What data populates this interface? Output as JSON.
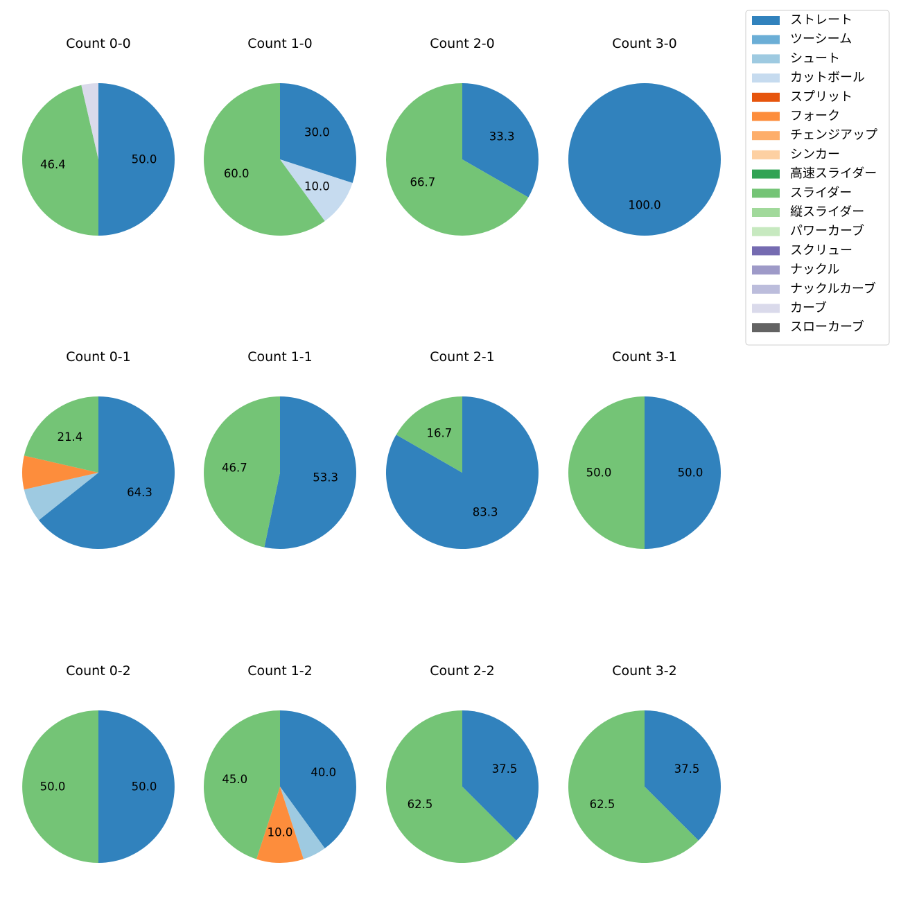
{
  "chart_data": {
    "type": "pie",
    "legend": {
      "position": "top-right",
      "entries": [
        {
          "name": "ストレート",
          "color": "#3182bd"
        },
        {
          "name": "ツーシーム",
          "color": "#6baed6"
        },
        {
          "name": "シュート",
          "color": "#9ecae1"
        },
        {
          "name": "カットボール",
          "color": "#c6dbef"
        },
        {
          "name": "スプリット",
          "color": "#e6550d"
        },
        {
          "name": "フォーク",
          "color": "#fd8d3c"
        },
        {
          "name": "チェンジアップ",
          "color": "#fdae6b"
        },
        {
          "name": "シンカー",
          "color": "#fdd0a2"
        },
        {
          "name": "高速スライダー",
          "color": "#31a354"
        },
        {
          "name": "スライダー",
          "color": "#74c476"
        },
        {
          "name": "縦スライダー",
          "color": "#a1d99b"
        },
        {
          "name": "パワーカーブ",
          "color": "#c7e9c0"
        },
        {
          "name": "スクリュー",
          "color": "#756bb1"
        },
        {
          "name": "ナックル",
          "color": "#9e9ac8"
        },
        {
          "name": "ナックルカーブ",
          "color": "#bcbddc"
        },
        {
          "name": "カーブ",
          "color": "#dadaeb"
        },
        {
          "name": "スローカーブ",
          "color": "#636363"
        }
      ]
    },
    "charts": [
      {
        "title": "Count 0-0",
        "slices": [
          {
            "pitch": "ストレート",
            "value": 50.0,
            "label": "50.0"
          },
          {
            "pitch": "スライダー",
            "value": 46.4,
            "label": "46.4"
          },
          {
            "pitch": "カーブ",
            "value": 3.6,
            "label": ""
          }
        ]
      },
      {
        "title": "Count 1-0",
        "slices": [
          {
            "pitch": "ストレート",
            "value": 30.0,
            "label": "30.0"
          },
          {
            "pitch": "カットボール",
            "value": 10.0,
            "label": "10.0"
          },
          {
            "pitch": "スライダー",
            "value": 60.0,
            "label": "60.0"
          }
        ]
      },
      {
        "title": "Count 2-0",
        "slices": [
          {
            "pitch": "ストレート",
            "value": 33.3,
            "label": "33.3"
          },
          {
            "pitch": "スライダー",
            "value": 66.7,
            "label": "66.7"
          }
        ]
      },
      {
        "title": "Count 3-0",
        "slices": [
          {
            "pitch": "ストレート",
            "value": 100.0,
            "label": "100.0"
          }
        ]
      },
      {
        "title": "Count 0-1",
        "slices": [
          {
            "pitch": "ストレート",
            "value": 64.3,
            "label": "64.3"
          },
          {
            "pitch": "シュート",
            "value": 7.15,
            "label": ""
          },
          {
            "pitch": "フォーク",
            "value": 7.15,
            "label": ""
          },
          {
            "pitch": "スライダー",
            "value": 21.4,
            "label": "21.4"
          }
        ]
      },
      {
        "title": "Count 1-1",
        "slices": [
          {
            "pitch": "ストレート",
            "value": 53.3,
            "label": "53.3"
          },
          {
            "pitch": "スライダー",
            "value": 46.7,
            "label": "46.7"
          }
        ]
      },
      {
        "title": "Count 2-1",
        "slices": [
          {
            "pitch": "ストレート",
            "value": 83.3,
            "label": "83.3"
          },
          {
            "pitch": "スライダー",
            "value": 16.7,
            "label": "16.7"
          }
        ]
      },
      {
        "title": "Count 3-1",
        "slices": [
          {
            "pitch": "ストレート",
            "value": 50.0,
            "label": "50.0"
          },
          {
            "pitch": "スライダー",
            "value": 50.0,
            "label": "50.0"
          }
        ]
      },
      {
        "title": "Count 0-2",
        "slices": [
          {
            "pitch": "ストレート",
            "value": 50.0,
            "label": "50.0"
          },
          {
            "pitch": "スライダー",
            "value": 50.0,
            "label": "50.0"
          }
        ]
      },
      {
        "title": "Count 1-2",
        "slices": [
          {
            "pitch": "ストレート",
            "value": 40.0,
            "label": "40.0"
          },
          {
            "pitch": "シュート",
            "value": 5.0,
            "label": ""
          },
          {
            "pitch": "フォーク",
            "value": 10.0,
            "label": "10.0"
          },
          {
            "pitch": "スライダー",
            "value": 45.0,
            "label": "45.0"
          }
        ]
      },
      {
        "title": "Count 2-2",
        "slices": [
          {
            "pitch": "ストレート",
            "value": 37.5,
            "label": "37.5"
          },
          {
            "pitch": "スライダー",
            "value": 62.5,
            "label": "62.5"
          }
        ]
      },
      {
        "title": "Count 3-2",
        "slices": [
          {
            "pitch": "ストレート",
            "value": 37.5,
            "label": "37.5"
          },
          {
            "pitch": "スライダー",
            "value": 62.5,
            "label": "62.5"
          }
        ]
      }
    ]
  }
}
